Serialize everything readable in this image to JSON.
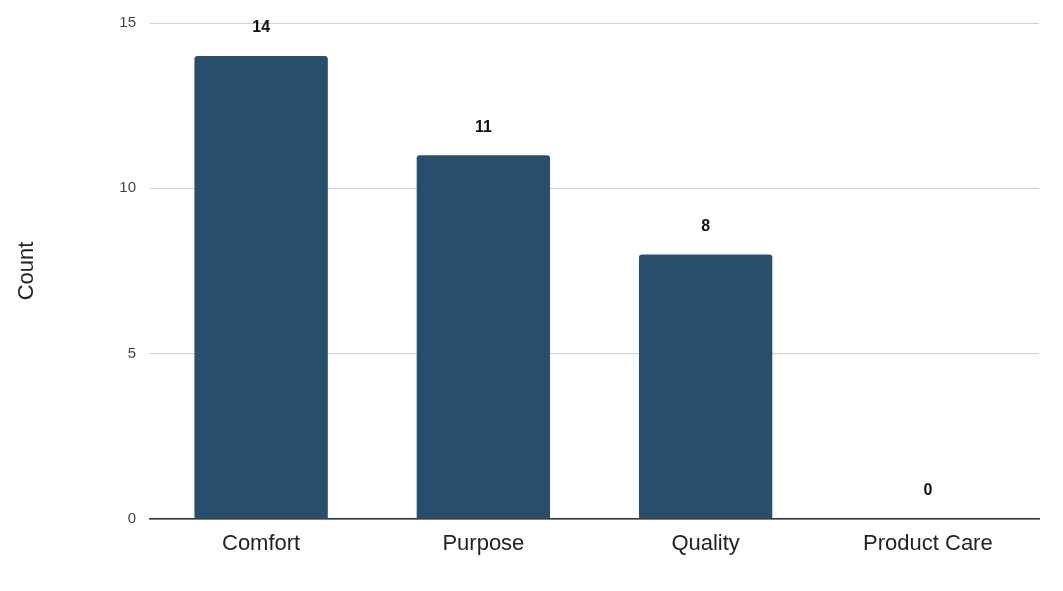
{
  "chart_data": {
    "type": "bar",
    "ylabel": "Count",
    "categories": [
      "Comfort",
      "Purpose",
      "Quality",
      "Product Care"
    ],
    "values": [
      14,
      11,
      8,
      0
    ],
    "color": "#274f6b",
    "ylim": [
      0,
      15
    ],
    "yticks": [
      0,
      5,
      10,
      15
    ],
    "grid": "y",
    "data_labels": true,
    "legend": false
  }
}
